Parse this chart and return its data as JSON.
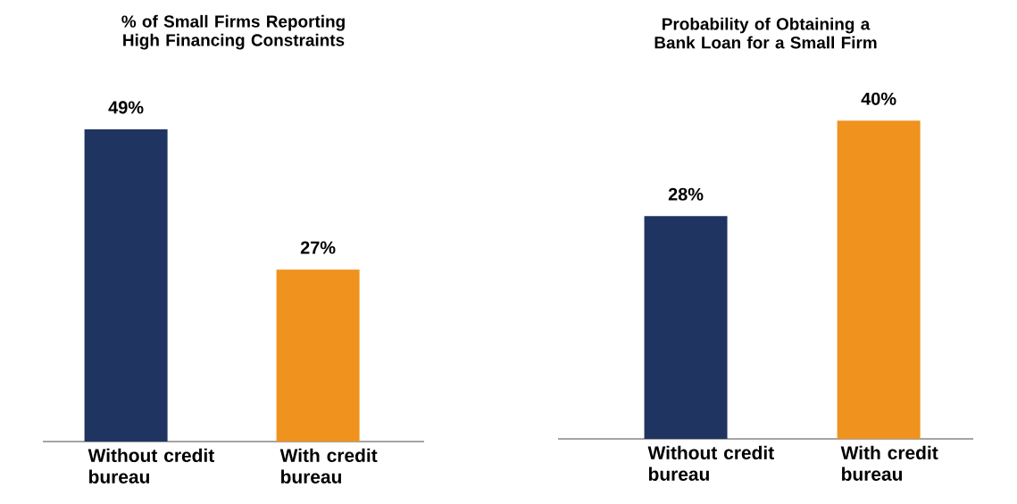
{
  "chart_data": [
    {
      "type": "bar",
      "title": "% of Small Firms Reporting High Financing Constraints",
      "categories": [
        "Without credit bureau",
        "With credit bureau"
      ],
      "values": [
        49,
        27
      ],
      "colors": [
        "#1f3460",
        "#f0921e"
      ],
      "data_labels": true,
      "value_labels": [
        "49%",
        "27%"
      ]
    },
    {
      "type": "bar",
      "title": "Probability of Obtaining a Bank Loan for a Small Firm",
      "categories": [
        "Without credit bureau",
        "With credit bureau"
      ],
      "values": [
        28,
        40
      ],
      "colors": [
        "#1f3460",
        "#f0921e"
      ],
      "data_labels": true,
      "value_labels": [
        "28%",
        "40%"
      ]
    }
  ]
}
